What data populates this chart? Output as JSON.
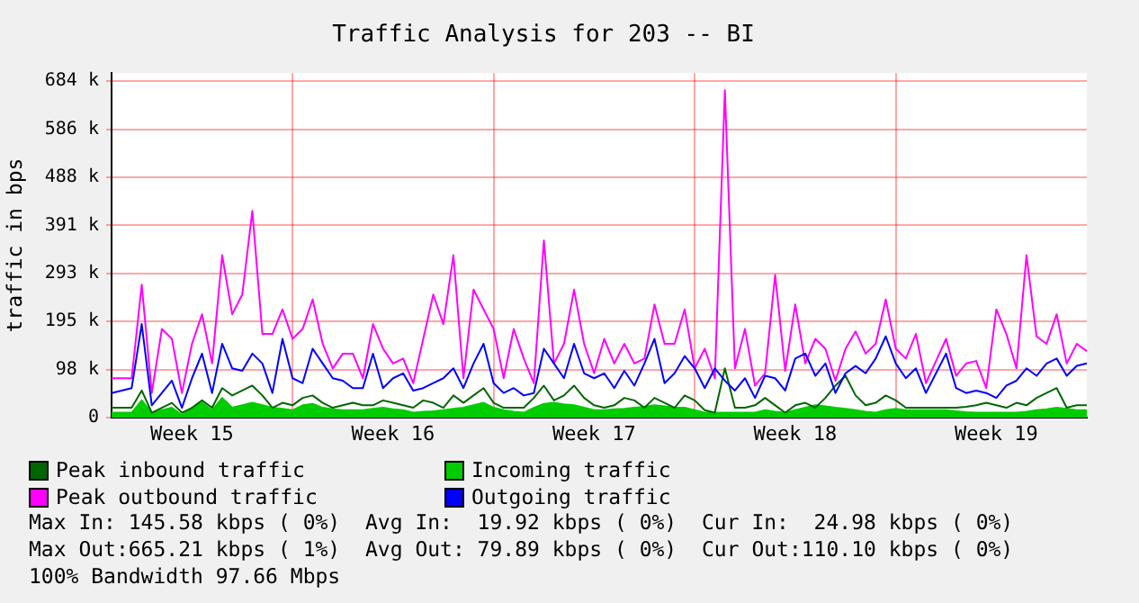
{
  "chart_data": {
    "type": "line",
    "title": "Traffic Analysis for 203 -- BI",
    "ylabel": "traffic in bps",
    "categories": [
      null,
      null,
      null,
      null,
      null,
      null,
      null,
      null,
      "Week 15",
      null,
      null,
      null,
      null,
      null,
      null,
      null,
      null,
      null,
      null,
      null,
      null,
      null,
      null,
      null,
      null,
      null,
      null,
      null,
      "Week 16",
      null,
      null,
      null,
      null,
      null,
      null,
      null,
      null,
      null,
      null,
      null,
      null,
      null,
      null,
      null,
      null,
      null,
      null,
      null,
      "Week 17",
      null,
      null,
      null,
      null,
      null,
      null,
      null,
      null,
      null,
      null,
      null,
      null,
      null,
      null,
      null,
      null,
      null,
      null,
      null,
      "Week 18",
      null,
      null,
      null,
      null,
      null,
      null,
      null,
      null,
      null,
      null,
      null,
      null,
      null,
      null,
      null,
      null,
      null,
      null,
      null,
      "Week 19",
      null,
      null,
      null,
      null,
      null,
      null,
      null,
      null,
      null
    ],
    "ylim": [
      0,
      700
    ],
    "yticks": [
      {
        "value": 0,
        "label": "0"
      },
      {
        "value": 97.66,
        "label": "98 k"
      },
      {
        "value": 195.31,
        "label": "195 k"
      },
      {
        "value": 292.97,
        "label": "293 k"
      },
      {
        "value": 390.63,
        "label": "391 k"
      },
      {
        "value": 488.28,
        "label": "488 k"
      },
      {
        "value": 585.94,
        "label": "586 k"
      },
      {
        "value": 683.59,
        "label": "684 k"
      }
    ],
    "grid": true,
    "legend": "bottom",
    "marker": "none",
    "line_style": "solid",
    "series": [
      {
        "name": "Peak inbound traffic",
        "color": "#006600",
        "values": [
          20,
          20,
          20,
          55,
          10,
          20,
          30,
          10,
          20,
          35,
          20,
          60,
          45,
          55,
          65,
          45,
          20,
          30,
          25,
          40,
          45,
          30,
          20,
          25,
          30,
          25,
          25,
          35,
          30,
          25,
          20,
          35,
          30,
          20,
          45,
          30,
          45,
          60,
          30,
          20,
          20,
          20,
          40,
          65,
          35,
          45,
          65,
          40,
          25,
          20,
          25,
          40,
          35,
          20,
          40,
          30,
          20,
          45,
          35,
          15,
          10,
          100,
          20,
          20,
          25,
          40,
          25,
          10,
          25,
          30,
          20,
          40,
          65,
          85,
          45,
          25,
          30,
          45,
          35,
          20,
          20,
          20,
          20,
          20,
          20,
          22,
          25,
          30,
          25,
          20,
          30,
          25,
          40,
          50,
          60,
          20,
          25,
          25
        ]
      },
      {
        "name": "Incoming traffic",
        "type": "area",
        "color": "#00cc00",
        "values": [
          10,
          10,
          10,
          35,
          10,
          15,
          20,
          5,
          20,
          30,
          15,
          40,
          20,
          25,
          30,
          25,
          20,
          18,
          15,
          25,
          28,
          20,
          17,
          15,
          15,
          15,
          18,
          20,
          17,
          15,
          10,
          12,
          13,
          15,
          18,
          20,
          25,
          30,
          20,
          15,
          12,
          10,
          20,
          28,
          30,
          27,
          25,
          20,
          15,
          15,
          17,
          18,
          20,
          22,
          25,
          23,
          20,
          20,
          15,
          10,
          10,
          10,
          10,
          10,
          10,
          15,
          12,
          10,
          15,
          20,
          25,
          23,
          20,
          18,
          15,
          12,
          10,
          15,
          18,
          15,
          15,
          15,
          15,
          15,
          13,
          11,
          10,
          10,
          10,
          10,
          10,
          12,
          15,
          17,
          20,
          18,
          15,
          15
        ]
      },
      {
        "name": "Peak outbound traffic",
        "color": "#ff00ff",
        "values": [
          80,
          80,
          80,
          270,
          50,
          180,
          160,
          50,
          150,
          210,
          110,
          330,
          210,
          250,
          420,
          170,
          170,
          220,
          160,
          180,
          240,
          150,
          100,
          130,
          130,
          80,
          190,
          140,
          110,
          120,
          70,
          160,
          250,
          190,
          330,
          80,
          260,
          220,
          180,
          80,
          180,
          120,
          70,
          360,
          110,
          150,
          260,
          150,
          90,
          160,
          110,
          150,
          110,
          120,
          230,
          150,
          150,
          220,
          100,
          140,
          80,
          665,
          100,
          180,
          65,
          90,
          290,
          95,
          230,
          110,
          160,
          140,
          75,
          140,
          175,
          130,
          150,
          240,
          140,
          120,
          170,
          70,
          115,
          160,
          85,
          110,
          115,
          60,
          220,
          170,
          100,
          330,
          165,
          150,
          210,
          110,
          150,
          135
        ]
      },
      {
        "name": "Outgoing traffic",
        "color": "#0000ff",
        "values": [
          50,
          55,
          60,
          190,
          25,
          50,
          75,
          20,
          80,
          130,
          50,
          150,
          100,
          95,
          130,
          110,
          50,
          160,
          80,
          70,
          140,
          110,
          80,
          75,
          60,
          60,
          130,
          60,
          80,
          90,
          55,
          60,
          70,
          80,
          100,
          60,
          110,
          150,
          70,
          50,
          60,
          45,
          50,
          140,
          110,
          80,
          150,
          90,
          80,
          90,
          60,
          95,
          65,
          110,
          160,
          70,
          90,
          125,
          100,
          60,
          100,
          75,
          55,
          80,
          40,
          85,
          80,
          55,
          120,
          130,
          85,
          110,
          50,
          90,
          105,
          90,
          120,
          165,
          110,
          80,
          100,
          50,
          90,
          130,
          60,
          50,
          55,
          50,
          40,
          65,
          75,
          100,
          85,
          110,
          120,
          85,
          105,
          110
        ]
      }
    ],
    "annotations": [
      "Max In: 145.58 kbps ( 0%)",
      "Avg In:  19.92 kbps ( 0%)",
      "Cur In:  24.98 kbps ( 0%)",
      "Max Out:665.21 kbps ( 1%)",
      "Avg Out: 79.89 kbps ( 0%)",
      "Cur Out:110.10 kbps ( 0%)",
      "100% Bandwidth 97.66 Mbps"
    ]
  }
}
